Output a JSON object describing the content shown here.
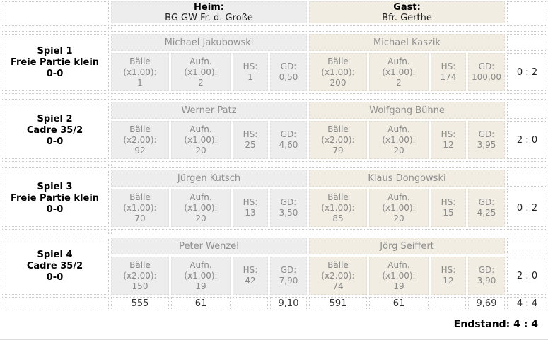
{
  "theme": {
    "home_bg": "#ededed",
    "guest_bg": "#f2ede3",
    "dotted_border": "#c9c9c9"
  },
  "header": {
    "home_label": "Heim:",
    "home_team": "BG GW Fr. d. Große",
    "guest_label": "Gast:",
    "guest_team": "Bfr. Gerthe"
  },
  "labels": {
    "balls": "Bälle",
    "innings": "Aufn.",
    "hs": "HS:",
    "gd": "GD:"
  },
  "games": [
    {
      "name": "Spiel 1",
      "discipline": "Freie Partie klein",
      "subscore": "0-0",
      "home": {
        "player": "Michael Jakubowski",
        "balls_mult": "(x1.00):",
        "balls": "1",
        "innings_mult": "(x1.00):",
        "innings": "2",
        "hs": "1",
        "gd": "0,50"
      },
      "guest": {
        "player": "Michael Kaszik",
        "balls_mult": "(x1.00):",
        "balls": "200",
        "innings_mult": "(x1.00):",
        "innings": "2",
        "hs": "174",
        "gd": "100,00"
      },
      "score": "0 : 2"
    },
    {
      "name": "Spiel 2",
      "discipline": "Cadre 35/2",
      "subscore": "0-0",
      "home": {
        "player": "Werner Patz",
        "balls_mult": "(x2.00):",
        "balls": "92",
        "innings_mult": "(x1.00):",
        "innings": "20",
        "hs": "25",
        "gd": "4,60"
      },
      "guest": {
        "player": "Wolfgang Bühne",
        "balls_mult": "(x2.00):",
        "balls": "79",
        "innings_mult": "(x1.00):",
        "innings": "20",
        "hs": "12",
        "gd": "3,95"
      },
      "score": "2 : 0"
    },
    {
      "name": "Spiel 3",
      "discipline": "Freie Partie klein",
      "subscore": "0-0",
      "home": {
        "player": "Jürgen Kutsch",
        "balls_mult": "(x1.00):",
        "balls": "70",
        "innings_mult": "(x1.00):",
        "innings": "20",
        "hs": "13",
        "gd": "3,50"
      },
      "guest": {
        "player": "Klaus Dongowski",
        "balls_mult": "(x1.00):",
        "balls": "85",
        "innings_mult": "(x1.00):",
        "innings": "20",
        "hs": "15",
        "gd": "4,25"
      },
      "score": "0 : 2"
    },
    {
      "name": "Spiel 4",
      "discipline": "Cadre 35/2",
      "subscore": "0-0",
      "home": {
        "player": "Peter Wenzel",
        "balls_mult": "(x2.00):",
        "balls": "150",
        "innings_mult": "(x1.00):",
        "innings": "19",
        "hs": "42",
        "gd": "7,90"
      },
      "guest": {
        "player": "Jörg Seiffert",
        "balls_mult": "(x2.00):",
        "balls": "74",
        "innings_mult": "(x1.00):",
        "innings": "19",
        "hs": "12",
        "gd": "3,90"
      },
      "score": "2 : 0"
    }
  ],
  "totals": {
    "home": {
      "balls": "555",
      "innings": "61",
      "gd": "9,10"
    },
    "guest": {
      "balls": "591",
      "innings": "61",
      "gd": "9,69"
    },
    "score": "4 : 4"
  },
  "footer": {
    "endstand": "Endstand: 4 : 4"
  }
}
